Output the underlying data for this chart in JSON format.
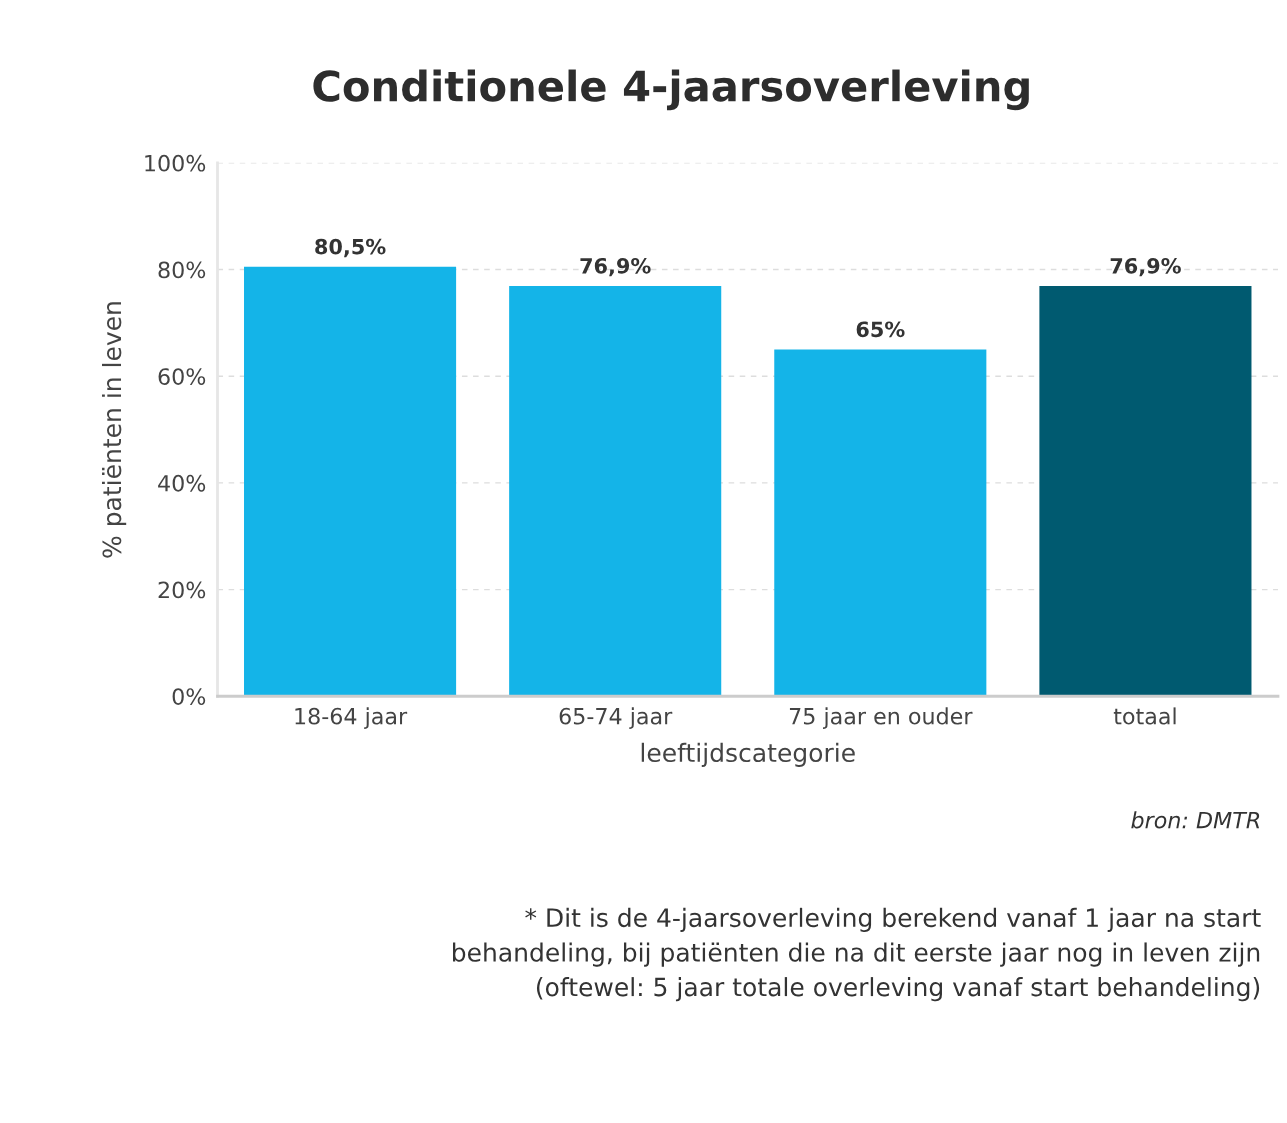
{
  "chart_data": {
    "type": "bar",
    "title": "Conditionele 4-jaarsoverleving",
    "xlabel": "leeftijdscategorie",
    "ylabel": "% patiënten in leven",
    "categories": [
      "18-64 jaar",
      "65-74 jaar",
      "75 jaar en ouder",
      "totaal"
    ],
    "values": [
      80.5,
      76.9,
      65,
      76.9
    ],
    "colors": [
      "#14b4e8",
      "#14b4e8",
      "#14b4e8",
      "#005a70"
    ],
    "value_labels": [
      "80,5%",
      "76,9%",
      "65%",
      "76,9%"
    ],
    "ylim": [
      0,
      100
    ],
    "yticks": [
      {
        "value": 0,
        "label": "0%"
      },
      {
        "value": 20,
        "label": "20%"
      },
      {
        "value": 40,
        "label": "40%"
      },
      {
        "value": 60,
        "label": "60%"
      },
      {
        "value": 80,
        "label": "80%"
      },
      {
        "value": 100,
        "label": "100%"
      }
    ],
    "grid": "y",
    "legend": false,
    "annotations": [
      "bron: DMTR",
      "* Dit is de 4-jaarsoverleving berekend vanaf 1 jaar na start\nbehandeling, bij patiënten die na dit eerste jaar nog in leven zijn\n(oftewel: 5 jaar totale overleving vanaf start behandeling)"
    ]
  }
}
